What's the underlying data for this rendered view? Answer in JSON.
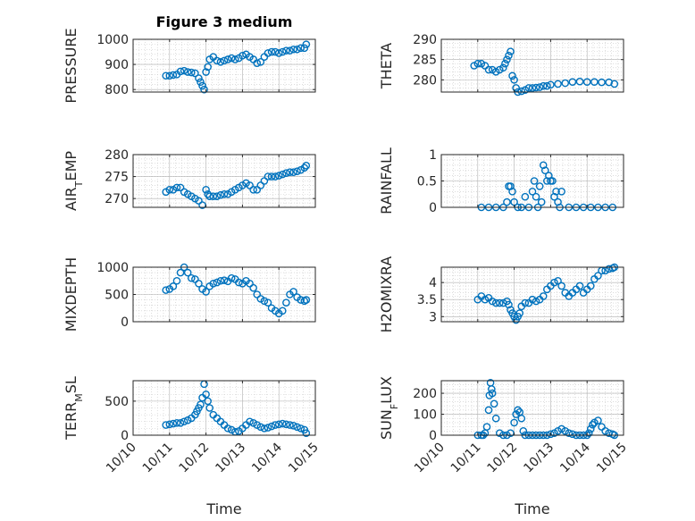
{
  "figure": {
    "title": "Figure 3 medium",
    "xlabel": "Time",
    "x_tick_labels": [
      "10/10",
      "10/11",
      "10/12",
      "10/13",
      "10/14",
      "10/15"
    ],
    "x_range_days": [
      0,
      5
    ]
  },
  "colors": {
    "marker": "#0072BD",
    "axis": "#262626",
    "grid": "#c8c8c8",
    "background": "#ffffff"
  },
  "chart_data": [
    {
      "type": "scatter",
      "ylabel": "PRESSURE",
      "ylim": [
        790,
        1000
      ],
      "yticks": [
        800,
        900,
        1000
      ],
      "x": [
        0.9,
        1.0,
        1.1,
        1.2,
        1.3,
        1.4,
        1.5,
        1.6,
        1.7,
        1.8,
        1.85,
        1.9,
        1.95,
        2.0,
        2.05,
        2.1,
        2.2,
        2.3,
        2.4,
        2.5,
        2.6,
        2.7,
        2.8,
        2.9,
        3.0,
        3.1,
        3.2,
        3.3,
        3.4,
        3.5,
        3.6,
        3.7,
        3.8,
        3.9,
        4.0,
        4.1,
        4.2,
        4.3,
        4.4,
        4.5,
        4.6,
        4.7,
        4.75
      ],
      "y": [
        855,
        855,
        858,
        860,
        872,
        875,
        870,
        868,
        865,
        845,
        830,
        815,
        800,
        870,
        890,
        920,
        930,
        915,
        910,
        915,
        920,
        925,
        920,
        925,
        935,
        940,
        930,
        920,
        905,
        910,
        930,
        945,
        950,
        950,
        945,
        950,
        955,
        955,
        960,
        960,
        965,
        965,
        980
      ]
    },
    {
      "type": "scatter",
      "ylabel": "THETA",
      "ylim": [
        277,
        290
      ],
      "yticks": [
        280,
        285,
        290
      ],
      "x": [
        0.9,
        1.0,
        1.1,
        1.2,
        1.3,
        1.4,
        1.5,
        1.6,
        1.7,
        1.75,
        1.8,
        1.85,
        1.9,
        1.95,
        2.0,
        2.05,
        2.1,
        2.2,
        2.3,
        2.4,
        2.5,
        2.6,
        2.7,
        2.8,
        2.9,
        3.0,
        3.2,
        3.4,
        3.6,
        3.8,
        4.0,
        4.2,
        4.4,
        4.6,
        4.75
      ],
      "y": [
        283.5,
        284,
        284,
        283.5,
        282.5,
        282.5,
        282,
        282.5,
        283,
        284,
        285,
        286,
        287,
        281,
        280,
        278,
        277,
        277.2,
        277.5,
        278,
        278,
        278.1,
        278.2,
        278.5,
        278.5,
        278.8,
        279,
        279.2,
        279.5,
        279.6,
        279.5,
        279.5,
        279.4,
        279.4,
        279
      ]
    },
    {
      "type": "scatter",
      "ylabel": "AIR_TEMP",
      "ylim": [
        268,
        280
      ],
      "yticks": [
        270,
        275,
        280
      ],
      "x": [
        0.9,
        1.0,
        1.1,
        1.2,
        1.3,
        1.4,
        1.5,
        1.6,
        1.7,
        1.8,
        1.9,
        2.0,
        2.05,
        2.1,
        2.2,
        2.3,
        2.4,
        2.5,
        2.6,
        2.7,
        2.8,
        2.9,
        3.0,
        3.1,
        3.2,
        3.3,
        3.4,
        3.5,
        3.6,
        3.7,
        3.8,
        3.9,
        4.0,
        4.1,
        4.2,
        4.3,
        4.4,
        4.5,
        4.6,
        4.7,
        4.75
      ],
      "y": [
        271.5,
        272,
        272,
        272.5,
        272.5,
        271.5,
        271,
        270.5,
        270,
        269.5,
        268.5,
        272,
        271,
        270.5,
        270.5,
        270.5,
        270.8,
        271,
        271,
        271.5,
        272,
        272.5,
        273,
        273.5,
        273,
        272,
        272,
        273,
        274,
        275,
        275,
        275,
        275.2,
        275.5,
        275.8,
        276,
        276,
        276.2,
        276.5,
        277,
        277.5
      ]
    },
    {
      "type": "scatter",
      "ylabel": "RAINFALL",
      "ylim": [
        0,
        1
      ],
      "yticks": [
        0,
        0.5,
        1
      ],
      "x": [
        1.1,
        1.3,
        1.5,
        1.7,
        1.8,
        1.85,
        1.9,
        1.95,
        2.0,
        2.1,
        2.2,
        2.3,
        2.4,
        2.5,
        2.55,
        2.6,
        2.65,
        2.7,
        2.75,
        2.8,
        2.85,
        2.9,
        2.95,
        3.0,
        3.05,
        3.1,
        3.15,
        3.2,
        3.25,
        3.3,
        3.5,
        3.7,
        3.9,
        4.1,
        4.3,
        4.5,
        4.7
      ],
      "y": [
        0,
        0,
        0,
        0,
        0.1,
        0.4,
        0.4,
        0.3,
        0.1,
        0,
        0,
        0.2,
        0,
        0.3,
        0.5,
        0.2,
        0,
        0.4,
        0.1,
        0.8,
        0.7,
        0.5,
        0.6,
        0.5,
        0.5,
        0.2,
        0.3,
        0.1,
        0,
        0.3,
        0,
        0,
        0,
        0,
        0,
        0,
        0
      ]
    },
    {
      "type": "scatter",
      "ylabel": "MIXDEPTH",
      "ylim": [
        0,
        1000
      ],
      "yticks": [
        0,
        500,
        1000
      ],
      "x": [
        0.9,
        1.0,
        1.1,
        1.2,
        1.3,
        1.4,
        1.5,
        1.6,
        1.7,
        1.8,
        1.9,
        2.0,
        2.1,
        2.2,
        2.3,
        2.4,
        2.5,
        2.6,
        2.7,
        2.8,
        2.9,
        3.0,
        3.1,
        3.2,
        3.3,
        3.4,
        3.5,
        3.6,
        3.7,
        3.8,
        3.9,
        4.0,
        4.1,
        4.2,
        4.3,
        4.4,
        4.5,
        4.6,
        4.7,
        4.75
      ],
      "y": [
        580,
        600,
        650,
        750,
        900,
        1000,
        900,
        800,
        780,
        700,
        600,
        550,
        650,
        700,
        720,
        750,
        760,
        740,
        800,
        780,
        720,
        700,
        750,
        700,
        620,
        500,
        420,
        380,
        350,
        250,
        200,
        150,
        200,
        350,
        500,
        550,
        450,
        400,
        380,
        400
      ]
    },
    {
      "type": "scatter",
      "ylabel": "H2OMIXRA",
      "ylim": [
        2.85,
        4.45
      ],
      "yticks": [
        3,
        3.5,
        4
      ],
      "x": [
        1.0,
        1.1,
        1.2,
        1.3,
        1.4,
        1.5,
        1.6,
        1.7,
        1.8,
        1.85,
        1.9,
        1.95,
        2.0,
        2.05,
        2.1,
        2.15,
        2.2,
        2.3,
        2.4,
        2.5,
        2.6,
        2.7,
        2.8,
        2.9,
        3.0,
        3.1,
        3.2,
        3.3,
        3.4,
        3.5,
        3.6,
        3.7,
        3.8,
        3.9,
        4.0,
        4.1,
        4.2,
        4.3,
        4.4,
        4.5,
        4.6,
        4.7,
        4.75
      ],
      "y": [
        3.5,
        3.6,
        3.5,
        3.55,
        3.45,
        3.4,
        3.4,
        3.4,
        3.45,
        3.35,
        3.2,
        3.1,
        3.0,
        2.9,
        3.0,
        3.1,
        3.3,
        3.4,
        3.4,
        3.5,
        3.45,
        3.5,
        3.6,
        3.8,
        3.9,
        4.0,
        4.05,
        3.9,
        3.7,
        3.6,
        3.7,
        3.8,
        3.9,
        3.7,
        3.8,
        3.9,
        4.1,
        4.2,
        4.35,
        4.35,
        4.4,
        4.42,
        4.45
      ]
    },
    {
      "type": "scatter",
      "ylabel": "TERR_MSL",
      "ylim": [
        0,
        800
      ],
      "yticks": [
        0,
        500
      ],
      "x": [
        0.9,
        1.0,
        1.1,
        1.2,
        1.3,
        1.4,
        1.5,
        1.6,
        1.7,
        1.75,
        1.8,
        1.85,
        1.9,
        1.95,
        2.0,
        2.05,
        2.1,
        2.2,
        2.3,
        2.4,
        2.5,
        2.6,
        2.7,
        2.8,
        2.9,
        3.0,
        3.1,
        3.2,
        3.3,
        3.4,
        3.5,
        3.6,
        3.7,
        3.8,
        3.9,
        4.0,
        4.1,
        4.2,
        4.3,
        4.4,
        4.5,
        4.6,
        4.7,
        4.75
      ],
      "y": [
        150,
        160,
        170,
        180,
        180,
        200,
        220,
        250,
        300,
        350,
        400,
        450,
        550,
        750,
        600,
        500,
        400,
        300,
        250,
        200,
        150,
        100,
        80,
        50,
        60,
        100,
        150,
        200,
        180,
        150,
        120,
        100,
        110,
        130,
        150,
        160,
        170,
        160,
        150,
        140,
        120,
        100,
        80,
        30
      ]
    },
    {
      "type": "scatter",
      "ylabel": "SUN_FLUX",
      "ylim": [
        0,
        260
      ],
      "yticks": [
        0,
        100,
        200
      ],
      "x": [
        1.0,
        1.1,
        1.15,
        1.2,
        1.25,
        1.3,
        1.32,
        1.35,
        1.38,
        1.4,
        1.45,
        1.5,
        1.6,
        1.7,
        1.8,
        1.9,
        2.0,
        2.05,
        2.1,
        2.15,
        2.2,
        2.25,
        2.3,
        2.4,
        2.5,
        2.6,
        2.7,
        2.8,
        2.9,
        3.0,
        3.1,
        3.2,
        3.3,
        3.4,
        3.5,
        3.6,
        3.7,
        3.8,
        3.9,
        4.0,
        4.05,
        4.1,
        4.15,
        4.2,
        4.3,
        4.4,
        4.5,
        4.6,
        4.7,
        4.75
      ],
      "y": [
        0,
        0,
        0,
        10,
        40,
        120,
        190,
        250,
        220,
        200,
        150,
        80,
        10,
        0,
        0,
        10,
        60,
        100,
        120,
        110,
        80,
        20,
        0,
        0,
        0,
        0,
        0,
        0,
        0,
        5,
        10,
        20,
        30,
        20,
        10,
        5,
        0,
        0,
        0,
        0,
        10,
        30,
        50,
        60,
        70,
        40,
        20,
        10,
        5,
        0
      ]
    }
  ]
}
